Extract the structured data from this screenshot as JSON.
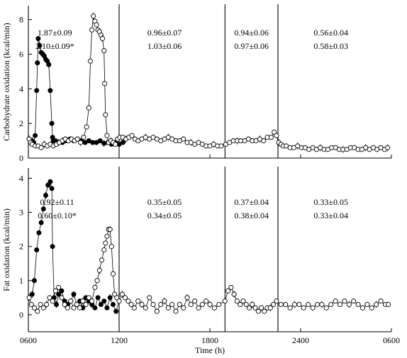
{
  "chart_data": [
    {
      "type": "scatter",
      "panel": "top",
      "ylabel": "Carbohydrate oxidation (kcal/min)",
      "ylim": [
        0,
        8.8
      ],
      "yticks": [
        0,
        2,
        4,
        6,
        8
      ],
      "xlim": [
        6,
        30
      ],
      "grid": false,
      "dividers": [
        12,
        19,
        22.5
      ],
      "annotations": [
        {
          "x": 7.75,
          "lines": [
            "1.87±0.09",
            "2.10±0.09*"
          ]
        },
        {
          "x": 15.0,
          "lines": [
            "0.96±0.07",
            "1.03±0.06"
          ]
        },
        {
          "x": 20.75,
          "lines": [
            "0.94±0.06",
            "0.97±0.06"
          ]
        },
        {
          "x": 26.0,
          "lines": [
            "0.56±0.04",
            "0.58±0.03"
          ]
        }
      ],
      "series": [
        {
          "style": "filled",
          "x": [
            6.25,
            6.35,
            6.45,
            6.55,
            6.6,
            6.65,
            6.75,
            6.85,
            6.95,
            7.05,
            7.15,
            7.25,
            7.35,
            7.45,
            7.55,
            7.6,
            7.65,
            7.8,
            8.0,
            8.25,
            8.5,
            8.75,
            9.0,
            9.25,
            9.5,
            9.75,
            10.0,
            10.25,
            10.5,
            10.75,
            11.0,
            11.25,
            11.5,
            11.75,
            12.0,
            12.25
          ],
          "y": [
            1.0,
            0.9,
            1.3,
            3.9,
            5.5,
            6.9,
            6.5,
            6.1,
            6.0,
            5.9,
            5.7,
            5.6,
            5.4,
            3.9,
            2.0,
            1.2,
            1.0,
            1.0,
            0.9,
            0.9,
            1.0,
            1.1,
            1.0,
            1.1,
            1.0,
            0.9,
            1.0,
            0.9,
            0.9,
            1.0,
            0.85,
            0.9,
            0.8,
            0.9,
            0.8,
            0.9
          ]
        },
        {
          "style": "open",
          "x": [
            6.05,
            6.15,
            6.25,
            6.45,
            6.65,
            6.85,
            7.05,
            7.25,
            7.45,
            7.65,
            7.85,
            8.05,
            8.25,
            8.45,
            8.65,
            8.85,
            9.05,
            9.25,
            9.45,
            9.65,
            9.85,
            10.0,
            10.1,
            10.2,
            10.3,
            10.4,
            10.5,
            10.6,
            10.7,
            10.8,
            10.9,
            11.0,
            11.05,
            11.1,
            11.2,
            11.3,
            11.45,
            11.6,
            11.75,
            11.9,
            12.05,
            12.25,
            12.45,
            12.65,
            12.85,
            13.05,
            13.25,
            13.5,
            13.75,
            14.0,
            14.25,
            14.5,
            14.75,
            15.0,
            15.25,
            15.5,
            15.75,
            16.0,
            16.25,
            16.5,
            16.75,
            17.0,
            17.25,
            17.5,
            17.75,
            18.0,
            18.25,
            18.5,
            18.75,
            19.05,
            19.3,
            19.55,
            19.8,
            20.05,
            20.3,
            20.55,
            20.8,
            21.05,
            21.3,
            21.55,
            21.8,
            22.05,
            22.25,
            22.4,
            22.55,
            22.7,
            22.85,
            23.05,
            23.3,
            23.55,
            23.8,
            24.05,
            24.3,
            24.55,
            24.8,
            25.05,
            25.3,
            25.55,
            25.8,
            26.05,
            26.3,
            26.55,
            26.8,
            27.05,
            27.3,
            27.55,
            27.8,
            28.05,
            28.3,
            28.55,
            28.8,
            29.05,
            29.3,
            29.55,
            29.75
          ],
          "y": [
            1.1,
            0.9,
            0.8,
            0.7,
            0.7,
            0.6,
            0.8,
            0.7,
            0.8,
            0.7,
            0.8,
            0.9,
            1.0,
            1.1,
            1.0,
            1.1,
            1.0,
            1.1,
            0.9,
            1.2,
            1.8,
            2.9,
            5.6,
            7.4,
            8.2,
            7.9,
            7.7,
            7.4,
            7.3,
            7.1,
            6.9,
            6.2,
            4.3,
            2.5,
            1.3,
            0.9,
            1.0,
            0.9,
            0.8,
            1.1,
            1.2,
            1.2,
            1.1,
            1.2,
            1.3,
            1.1,
            1.0,
            1.1,
            1.2,
            1.1,
            1.2,
            1.1,
            1.0,
            1.1,
            1.2,
            1.1,
            1.0,
            1.0,
            1.1,
            0.9,
            0.9,
            0.8,
            0.9,
            0.8,
            0.7,
            0.7,
            0.8,
            0.7,
            0.7,
            0.8,
            0.9,
            1.0,
            1.0,
            1.0,
            1.0,
            1.1,
            1.0,
            1.0,
            1.1,
            1.0,
            1.2,
            1.2,
            1.5,
            1.3,
            0.9,
            0.8,
            0.7,
            0.7,
            0.6,
            0.6,
            0.7,
            0.6,
            0.6,
            0.5,
            0.6,
            0.5,
            0.6,
            0.5,
            0.5,
            0.6,
            0.6,
            0.5,
            0.5,
            0.5,
            0.6,
            0.6,
            0.5,
            0.5,
            0.6,
            0.5,
            0.6,
            0.5,
            0.6,
            0.5,
            0.6
          ]
        }
      ]
    },
    {
      "type": "scatter",
      "panel": "bottom",
      "ylabel": "Fat oxidation (kcal/min)",
      "xlabel": "Time (h)",
      "ylim": [
        -0.5,
        4.3
      ],
      "yticks": [
        0,
        1,
        2,
        3,
        4
      ],
      "xlim": [
        6,
        30
      ],
      "xticks": [
        6,
        12,
        18,
        24,
        30
      ],
      "xticklabels": [
        "0600",
        "1200",
        "1800",
        "2400",
        "0600"
      ],
      "grid": false,
      "dividers": [
        12,
        19,
        22.5
      ],
      "annotations": [
        {
          "x": 7.9,
          "lines": [
            "0.92±0.11",
            "0.60±0.10*"
          ]
        },
        {
          "x": 15.0,
          "lines": [
            "0.35±0.05",
            "0.34±0.05"
          ]
        },
        {
          "x": 20.75,
          "lines": [
            "0.37±0.04",
            "0.38±0.04"
          ]
        },
        {
          "x": 26.0,
          "lines": [
            "0.33±0.05",
            "0.33±0.04"
          ]
        }
      ],
      "series": [
        {
          "style": "filled",
          "x": [
            6.25,
            6.4,
            6.55,
            6.7,
            6.85,
            7.0,
            7.15,
            7.3,
            7.45,
            7.55,
            7.6,
            7.7,
            7.85,
            8.0,
            8.2,
            8.4,
            8.6,
            8.8,
            9.0,
            9.2,
            9.4,
            9.6,
            9.8,
            10.0,
            10.2,
            10.4,
            10.6,
            10.8,
            11.0,
            11.2,
            11.4,
            11.6,
            11.8,
            12.0
          ],
          "y": [
            0.6,
            1.0,
            1.9,
            2.4,
            2.7,
            3.1,
            3.5,
            3.8,
            3.9,
            3.7,
            2.0,
            0.5,
            0.3,
            0.6,
            0.7,
            0.4,
            0.3,
            0.4,
            0.6,
            0.3,
            0.4,
            0.2,
            0.5,
            0.4,
            0.3,
            0.2,
            0.5,
            0.3,
            0.4,
            0.2,
            0.5,
            0.3,
            0.1,
            0.4
          ]
        },
        {
          "style": "open",
          "x": [
            6.05,
            6.2,
            6.4,
            6.6,
            6.8,
            7.0,
            7.2,
            7.4,
            7.6,
            7.8,
            8.0,
            8.2,
            8.4,
            8.6,
            8.8,
            9.0,
            9.2,
            9.4,
            9.6,
            9.8,
            10.0,
            10.2,
            10.4,
            10.55,
            10.7,
            10.85,
            11.0,
            11.1,
            11.2,
            11.3,
            11.4,
            11.5,
            11.6,
            11.7,
            11.85,
            12.0,
            12.2,
            12.4,
            12.6,
            12.8,
            13.0,
            13.25,
            13.5,
            13.75,
            14.0,
            14.25,
            14.5,
            14.75,
            15.0,
            15.25,
            15.5,
            15.75,
            16.0,
            16.25,
            16.5,
            16.75,
            17.0,
            17.25,
            17.5,
            17.75,
            18.0,
            18.3,
            18.6,
            19.0,
            19.2,
            19.4,
            19.6,
            19.8,
            20.0,
            20.2,
            20.4,
            20.6,
            20.8,
            21.0,
            21.2,
            21.4,
            21.6,
            21.8,
            22.0,
            22.2,
            22.4,
            22.7,
            23.0,
            23.3,
            23.6,
            23.9,
            24.2,
            24.5,
            24.8,
            25.1,
            25.4,
            25.7,
            26.0,
            26.3,
            26.6,
            26.9,
            27.2,
            27.5,
            27.8,
            28.1,
            28.4,
            28.7,
            29.0,
            29.3,
            29.6,
            29.8
          ],
          "y": [
            0.5,
            0.3,
            0.2,
            0.1,
            0.3,
            0.2,
            0.3,
            0.5,
            0.4,
            0.7,
            0.8,
            0.5,
            0.3,
            0.2,
            0.4,
            0.2,
            0.3,
            0.2,
            0.4,
            0.3,
            0.5,
            0.4,
            0.8,
            1.0,
            1.3,
            1.6,
            1.9,
            2.1,
            2.3,
            2.5,
            2.5,
            2.0,
            1.2,
            0.6,
            0.5,
            0.4,
            0.6,
            0.5,
            0.4,
            0.3,
            0.2,
            0.4,
            0.3,
            0.2,
            0.5,
            0.3,
            0.1,
            0.3,
            0.4,
            0.2,
            0.3,
            0.1,
            0.3,
            0.2,
            0.5,
            0.3,
            0.4,
            0.2,
            0.3,
            0.4,
            0.3,
            0.2,
            0.3,
            0.4,
            0.7,
            0.8,
            0.6,
            0.4,
            0.3,
            0.4,
            0.3,
            0.2,
            0.3,
            0.2,
            0.1,
            0.2,
            0.1,
            0.2,
            0.2,
            0.3,
            0.4,
            0.3,
            0.3,
            0.2,
            0.3,
            0.3,
            0.2,
            0.3,
            0.2,
            0.3,
            0.3,
            0.2,
            0.3,
            0.4,
            0.3,
            0.4,
            0.3,
            0.4,
            0.3,
            0.2,
            0.3,
            0.2,
            0.3,
            0.4,
            0.3,
            0.3
          ]
        }
      ]
    }
  ]
}
